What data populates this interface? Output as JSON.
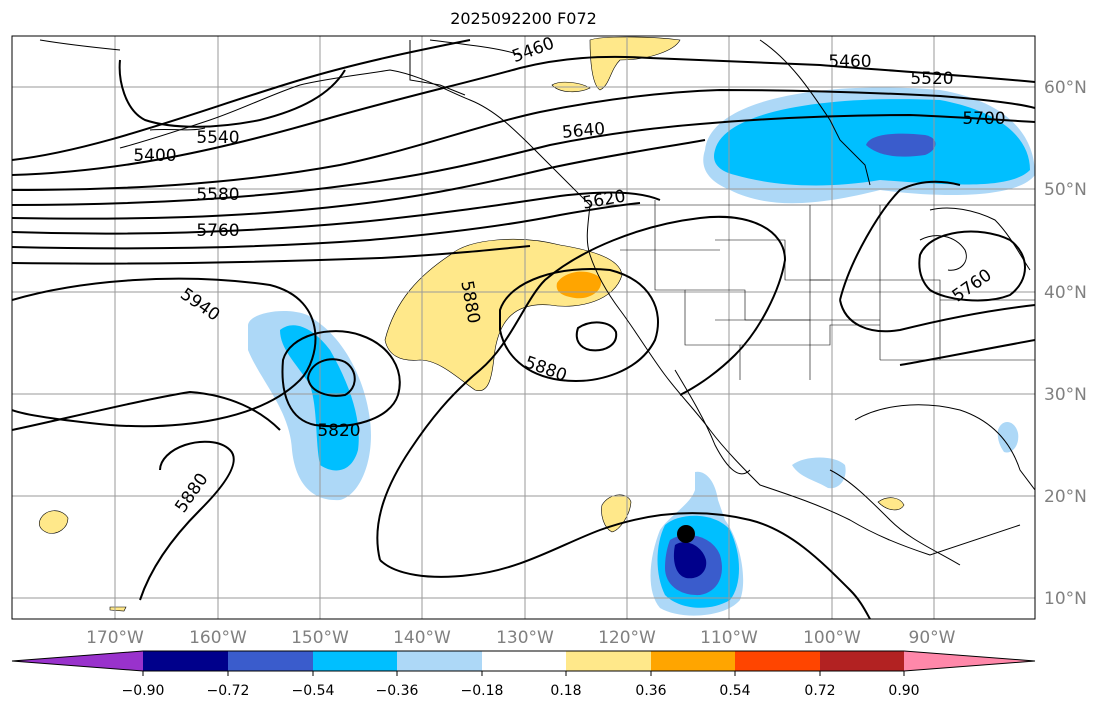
{
  "title": "2025092200 F072",
  "map": {
    "lon_labels": [
      "170°W",
      "160°W",
      "150°W",
      "140°W",
      "130°W",
      "120°W",
      "110°W",
      "100°W",
      "90°W"
    ],
    "lat_labels": [
      "60°N",
      "50°N",
      "40°N",
      "30°N",
      "20°N",
      "10°N"
    ],
    "contour_labels": [
      "5460",
      "5460",
      "5520",
      "5700",
      "5640",
      "5540",
      "5400",
      "5580",
      "5760",
      "5620",
      "5940",
      "5880",
      "5880",
      "5820",
      "5880",
      "5760"
    ],
    "colors": {
      "ocean_bg": "#ffffff",
      "coastline": "#000000",
      "gridline": "#9a9a9a",
      "axis_label": "#808080"
    }
  },
  "colorbar": {
    "colors": [
      "#9932cc",
      "#00008b",
      "#3a5ccc",
      "#00bfff",
      "#add8f7",
      "#ffffff",
      "#ffe88a",
      "#ffa500",
      "#ff4500",
      "#b22222",
      "#ff88aa"
    ],
    "tick_labels": [
      "−0.90",
      "−0.72",
      "−0.54",
      "−0.36",
      "−0.18",
      "0.18",
      "0.36",
      "0.54",
      "0.72",
      "0.90"
    ]
  }
}
